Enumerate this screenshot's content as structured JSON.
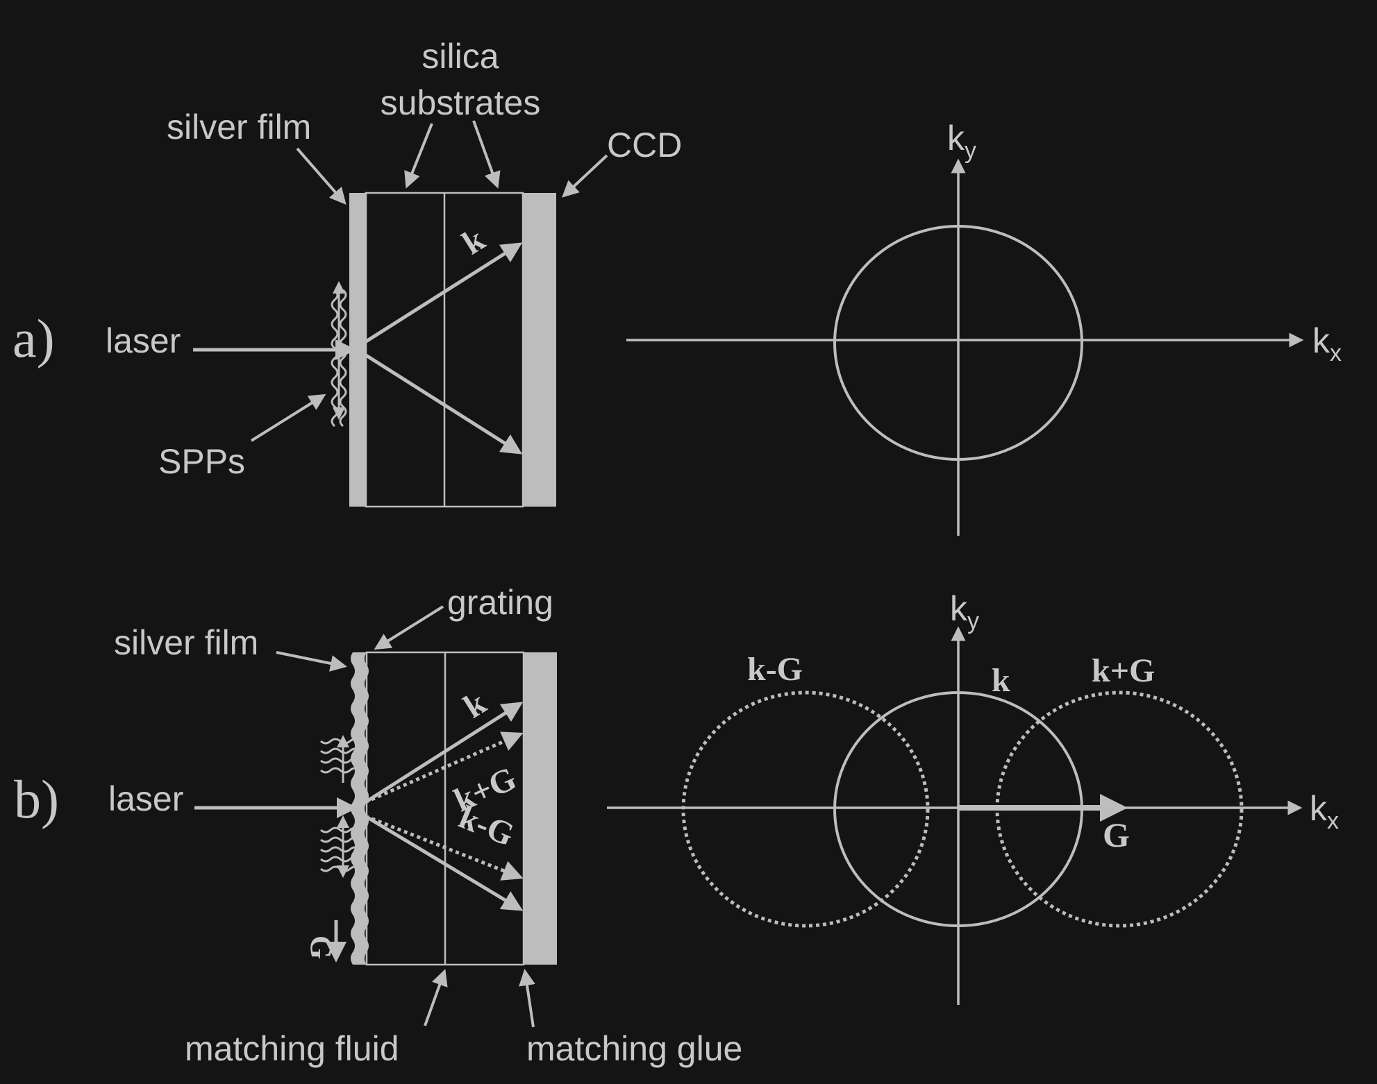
{
  "panel_a": {
    "label": "a)",
    "laser": "laser",
    "silver_film": "silver film",
    "silica_line1": "silica",
    "silica_line2": "substrates",
    "ccd": "CCD",
    "spps": "SPPs",
    "k": "k",
    "axis_x": "k",
    "axis_x_sub": "x",
    "axis_y": "k",
    "axis_y_sub": "y"
  },
  "panel_b": {
    "label": "b)",
    "laser": "laser",
    "silver_film": "silver film",
    "grating": "grating",
    "matching_fluid": "matching fluid",
    "matching_glue": "matching glue",
    "k": "k",
    "k_plus_g": "k+G",
    "k_minus_g": "k-G",
    "g": "G",
    "axis_x": "k",
    "axis_x_sub": "x",
    "axis_y": "k",
    "axis_y_sub": "y",
    "circle_k": "k",
    "circle_k_minus_g": "k-G",
    "circle_k_plus_g": "k+G",
    "g_vector": "G"
  },
  "colors": {
    "background": "#141414",
    "foreground": "#bdbdbd"
  }
}
